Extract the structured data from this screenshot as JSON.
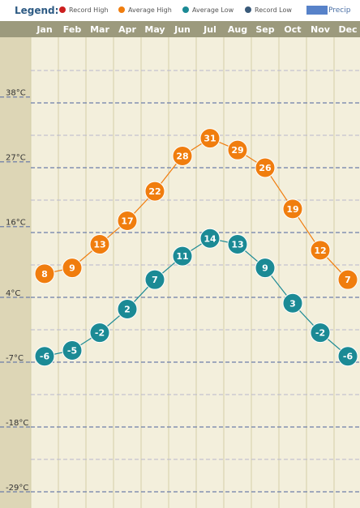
{
  "legend": {
    "title": "Legend:",
    "items": [
      {
        "label": "Record High",
        "color": "#cc1f1f"
      },
      {
        "label": "Average High",
        "color": "#f07d0e"
      },
      {
        "label": "Average Low",
        "color": "#1b8a95"
      },
      {
        "label": "Record Low",
        "color": "#3a5a7a"
      },
      {
        "label": "Precip",
        "color": "#3a6cc0"
      }
    ]
  },
  "chart_data": {
    "type": "line",
    "categories": [
      "Jan",
      "Feb",
      "Mar",
      "Apr",
      "May",
      "Jun",
      "Jul",
      "Aug",
      "Sep",
      "Oct",
      "Nov",
      "Dec"
    ],
    "series": [
      {
        "name": "Average High",
        "color": "#f07d0e",
        "values": [
          8,
          9,
          13,
          17,
          22,
          28,
          31,
          29,
          26,
          19,
          12,
          7
        ]
      },
      {
        "name": "Average Low",
        "color": "#1b8a95",
        "values": [
          -6,
          -5,
          -2,
          2,
          7,
          11,
          14,
          13,
          9,
          3,
          -2,
          -6
        ]
      }
    ],
    "y_ticks": [
      {
        "value": 38,
        "label": "38°C"
      },
      {
        "value": 27,
        "label": "27°C"
      },
      {
        "value": 16,
        "label": "16°C"
      },
      {
        "value": 4,
        "label": "4°C"
      },
      {
        "value": -7,
        "label": "-7°C"
      },
      {
        "value": -18,
        "label": "-18°C"
      },
      {
        "value": -29,
        "label": "-29°C"
      }
    ],
    "ylim": [
      -29,
      38
    ],
    "grid": true
  }
}
